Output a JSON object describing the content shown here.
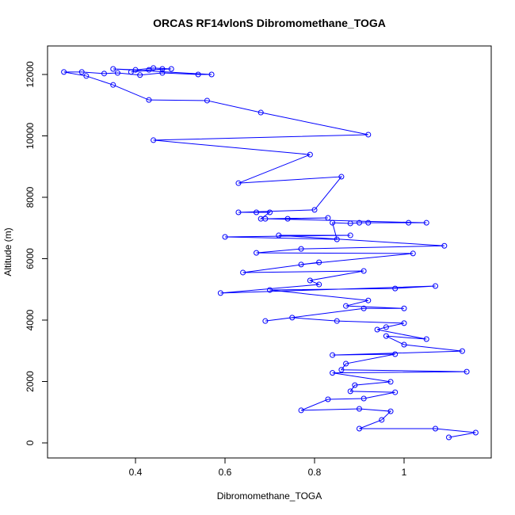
{
  "chart_data": {
    "type": "line",
    "title": "ORCAS RF14vlonS Dibromomethane_TOGA",
    "x_label": "Dibromomethane_TOGA",
    "y_label": "Altitude (m)",
    "xlim": [
      0.2035,
      1.1947
    ],
    "ylim": [
      -490,
      12929
    ],
    "xticks": [
      0.4,
      0.6,
      0.8,
      1.0
    ],
    "yticks": [
      0,
      2000,
      4000,
      6000,
      8000,
      10000,
      12000
    ],
    "series": [
      {
        "name": "Dibromomethane_TOGA",
        "color": "#0000ff",
        "x": [
          1.1,
          1.16,
          1.07,
          0.9,
          0.95,
          0.97,
          0.9,
          0.77,
          0.83,
          0.91,
          0.98,
          0.88,
          0.89,
          0.97,
          0.84,
          1.14,
          0.86,
          0.87,
          0.98,
          0.84,
          1.13,
          1.0,
          0.96,
          1.05,
          0.94,
          0.96,
          1.0,
          0.85,
          0.75,
          0.69,
          0.91,
          1.0,
          0.87,
          0.92,
          0.7,
          0.98,
          1.07,
          0.59,
          0.81,
          0.79,
          0.91,
          0.64,
          0.81,
          0.77,
          1.02,
          0.67,
          0.77,
          1.09,
          0.72,
          0.88,
          0.6,
          0.85,
          0.84,
          0.88,
          0.9,
          0.92,
          1.01,
          1.05,
          0.69,
          0.83,
          0.74,
          0.68,
          0.7,
          0.67,
          0.63,
          0.8,
          0.86,
          0.63,
          0.79,
          0.44,
          0.92,
          0.68,
          0.56,
          0.43,
          0.35,
          0.29,
          0.24,
          0.28,
          0.33,
          0.36,
          0.41,
          0.46,
          0.54,
          0.57,
          0.35,
          0.4,
          0.44,
          0.48,
          0.43,
          0.39,
          0.46
        ],
        "values": [
          180,
          335,
          465,
          465,
          750,
          1030,
          1110,
          1060,
          1420,
          1445,
          1650,
          1680,
          1880,
          1990,
          2280,
          2320,
          2380,
          2580,
          2890,
          2860,
          2990,
          3200,
          3480,
          3380,
          3690,
          3770,
          3900,
          3970,
          4080,
          3970,
          4380,
          4380,
          4460,
          4640,
          4980,
          5030,
          5110,
          4880,
          5160,
          5290,
          5600,
          5550,
          5880,
          5810,
          6170,
          6190,
          6320,
          6420,
          6760,
          6760,
          6710,
          6630,
          7170,
          7150,
          7170,
          7170,
          7170,
          7170,
          7300,
          7330,
          7300,
          7300,
          7510,
          7510,
          7510,
          7590,
          8670,
          8460,
          9390,
          9860,
          10040,
          10760,
          11150,
          11170,
          11660,
          11950,
          12080,
          12080,
          12030,
          12050,
          11980,
          12050,
          12000,
          12000,
          12180,
          12150,
          12210,
          12180,
          12150,
          12080,
          12180
        ]
      }
    ]
  }
}
